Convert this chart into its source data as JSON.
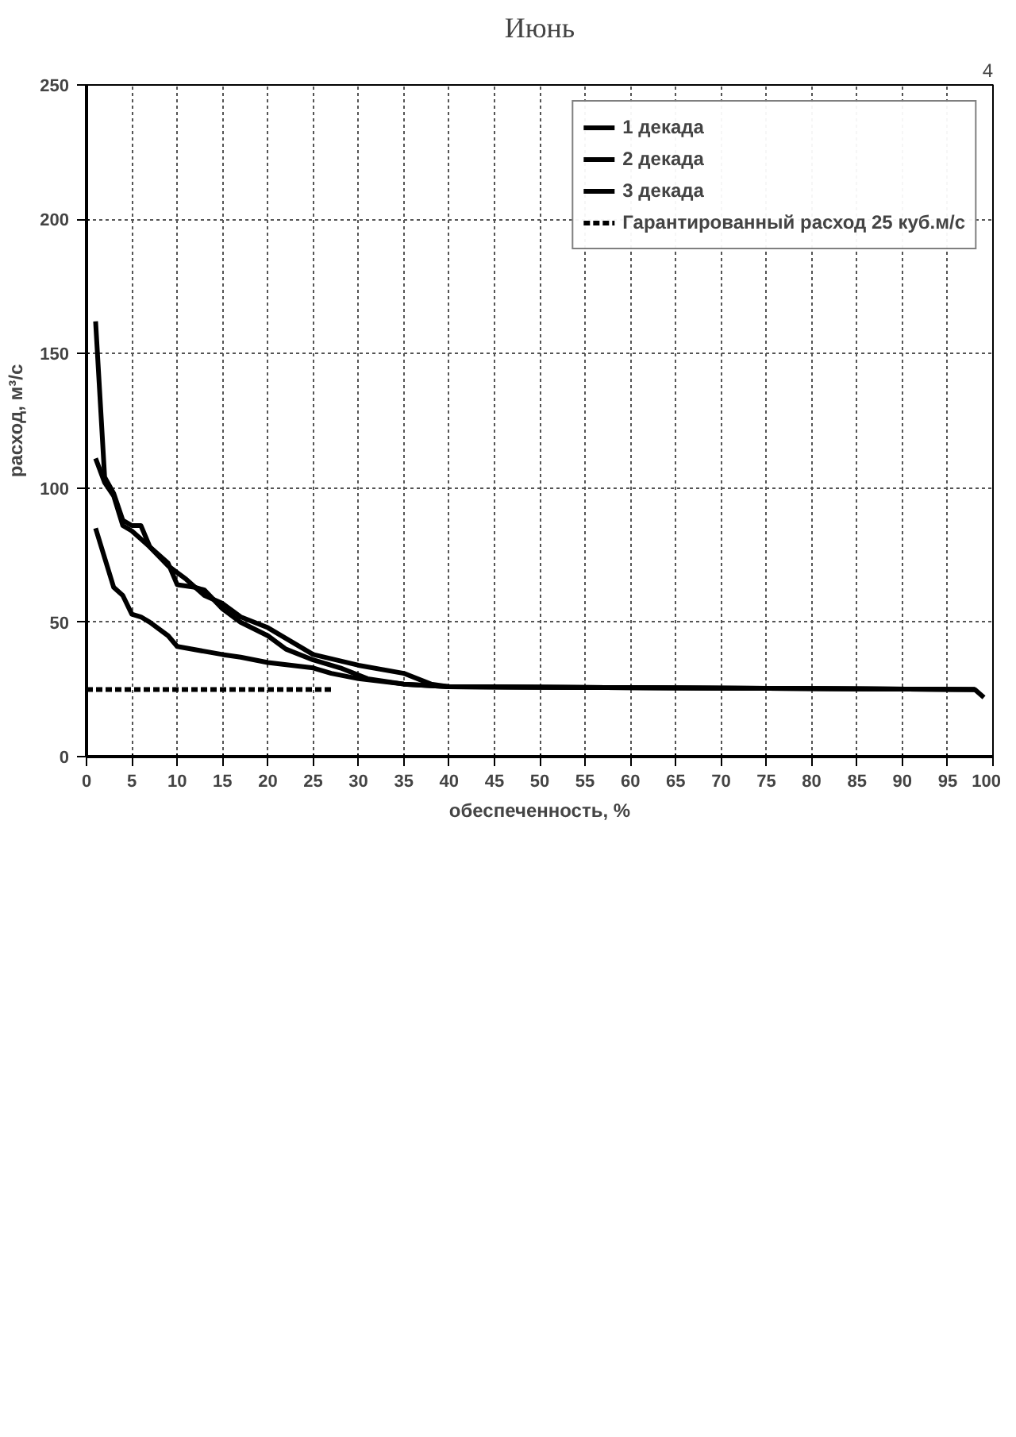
{
  "chart_data": {
    "type": "line",
    "title": "Июнь",
    "xlabel": "обеспеченность, %",
    "ylabel": "расход, м³/с",
    "annotations": [
      "4"
    ],
    "xlim": [
      0,
      100
    ],
    "ylim": [
      0,
      250
    ],
    "xticks": [
      0,
      5,
      10,
      15,
      20,
      25,
      30,
      35,
      40,
      45,
      50,
      55,
      60,
      65,
      70,
      75,
      80,
      85,
      90,
      95,
      100
    ],
    "yticks": [
      0,
      50,
      100,
      150,
      200,
      250
    ],
    "grid": true,
    "legend": "top right",
    "marker": "none",
    "series": [
      {
        "name": "1 декада",
        "color": "#000000",
        "x": [
          1,
          2,
          3,
          4,
          5,
          6,
          7,
          9,
          11,
          13,
          15,
          17,
          20,
          22,
          25,
          30,
          35,
          38,
          40,
          98,
          99
        ],
        "values": [
          162,
          104,
          98,
          88,
          86,
          86,
          78,
          71,
          66,
          60,
          57,
          52,
          48,
          44,
          38,
          34,
          31,
          27,
          26,
          25,
          22
        ]
      },
      {
        "name": "2 декада",
        "color": "#000000",
        "x": [
          1,
          2,
          3,
          4,
          5,
          7,
          9,
          10,
          12,
          13,
          15,
          17,
          20,
          22,
          25,
          28,
          31,
          35,
          40,
          98
        ],
        "values": [
          111,
          102,
          97,
          86,
          84,
          78,
          72,
          64,
          63,
          62,
          55,
          50,
          45,
          40,
          36,
          33,
          29,
          27,
          26,
          25
        ]
      },
      {
        "name": "3 декада",
        "color": "#000000",
        "x": [
          1,
          3,
          4,
          5,
          6,
          7,
          9,
          10,
          15,
          17,
          20,
          25,
          27,
          30,
          35,
          40,
          98
        ],
        "values": [
          85,
          63,
          60,
          53,
          52,
          50,
          45,
          41,
          38,
          37,
          35,
          33,
          31,
          29,
          27,
          26,
          25
        ]
      },
      {
        "name": "Гарантированный расход 25 куб.м/с",
        "color": "#000000",
        "line_style": "dashed",
        "x": [
          0,
          27
        ],
        "values": [
          25,
          25
        ]
      }
    ]
  }
}
